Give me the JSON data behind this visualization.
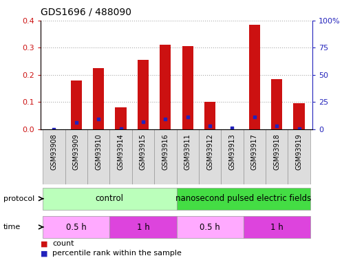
{
  "title": "GDS1696 / 488090",
  "samples": [
    "GSM93908",
    "GSM93909",
    "GSM93910",
    "GSM93914",
    "GSM93915",
    "GSM93916",
    "GSM93911",
    "GSM93912",
    "GSM93913",
    "GSM93917",
    "GSM93918",
    "GSM93919"
  ],
  "count_values": [
    0.0,
    0.18,
    0.225,
    0.08,
    0.255,
    0.31,
    0.305,
    0.1,
    0.0,
    0.385,
    0.185,
    0.095
  ],
  "percentile_values": [
    0.0,
    0.06,
    0.095,
    0.005,
    0.065,
    0.095,
    0.11,
    0.03,
    0.01,
    0.11,
    0.03,
    0.005
  ],
  "ylim_left": [
    0,
    0.4
  ],
  "ylim_right": [
    0,
    100
  ],
  "yticks_left": [
    0,
    0.1,
    0.2,
    0.3,
    0.4
  ],
  "yticks_right": [
    0,
    25,
    50,
    75,
    100
  ],
  "ytick_labels_right": [
    "0",
    "25",
    "50",
    "75",
    "100%"
  ],
  "bar_color": "#cc1111",
  "dot_color": "#2222bb",
  "protocol_groups": [
    {
      "label": "control",
      "start": 0,
      "end": 5,
      "color": "#bbffbb"
    },
    {
      "label": "nanosecond pulsed electric fields",
      "start": 6,
      "end": 11,
      "color": "#44dd44"
    }
  ],
  "time_groups": [
    {
      "label": "0.5 h",
      "start": 0,
      "end": 2,
      "color": "#ffaaff"
    },
    {
      "label": "1 h",
      "start": 3,
      "end": 5,
      "color": "#dd44dd"
    },
    {
      "label": "0.5 h",
      "start": 6,
      "end": 8,
      "color": "#ffaaff"
    },
    {
      "label": "1 h",
      "start": 9,
      "end": 11,
      "color": "#dd44dd"
    }
  ],
  "legend_labels": [
    "count",
    "percentile rank within the sample"
  ],
  "protocol_label": "protocol",
  "time_label": "time",
  "bar_width": 0.5,
  "grid_color": "#aaaaaa",
  "axis_bg": "#ffffff",
  "tick_color_left": "#cc1111",
  "tick_color_right": "#2222bb",
  "cell_bg": "#dddddd",
  "cell_border": "#999999"
}
